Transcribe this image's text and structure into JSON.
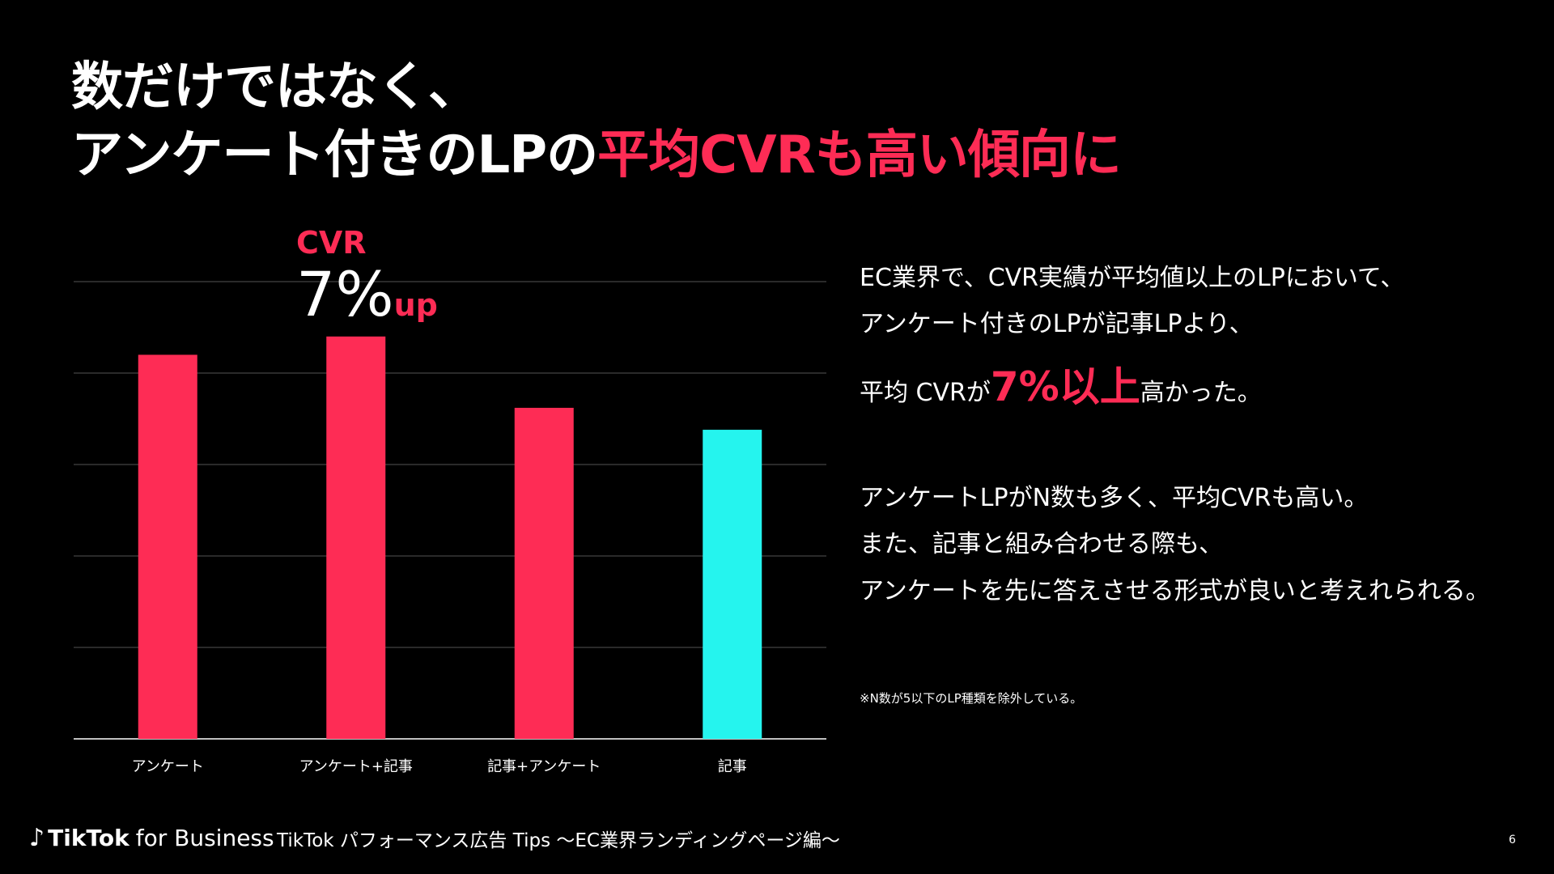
{
  "title": {
    "line1": "数だけではなく、",
    "line2_plain": "アンケート付きのLPの",
    "line2_accent": "平均CVRも高い傾向に"
  },
  "callout": {
    "label": "CVR",
    "value": "7%",
    "suffix": "up"
  },
  "text": {
    "p1_line1": "EC業界で、CVR実績が平均値以上のLPにおいて、",
    "p1_line2": "アンケート付きのLPが記事LPより、",
    "p1_line3_pre": "平均 CVRが",
    "p1_line3_big": "7%以上",
    "p1_line3_post": "高かった。",
    "p2_line1": "アンケートLPがN数も多く、平均CVRも高い。",
    "p2_line2": "また、記事と組み合わせる際も、",
    "p2_line3": "アンケートを先に答えさせる形式が良いと考えれられる。",
    "note": "※N数が5以下のLP種類を除外している。"
  },
  "footer": {
    "brand_bold": "TikTok",
    "brand_rest": "for Business",
    "subtitle": "TikTok パフォーマンス広告 Tips ～EC業界ランディングページ編～",
    "page": "6"
  },
  "chart_data": {
    "type": "bar",
    "categories": [
      "アンケート",
      "アンケート+記事",
      "記事+アンケート",
      "記事"
    ],
    "values": [
      4.2,
      4.4,
      3.62,
      3.38
    ],
    "colors": [
      "#fe2c55",
      "#fe2c55",
      "#fe2c55",
      "#25f4ee"
    ],
    "ylim": [
      0,
      5
    ],
    "gridlines": 5,
    "yticks_visible": false,
    "title": "",
    "xlabel": "",
    "ylabel": ""
  },
  "colors": {
    "accent": "#fe2c55",
    "cyan": "#25f4ee",
    "background": "#000000"
  }
}
